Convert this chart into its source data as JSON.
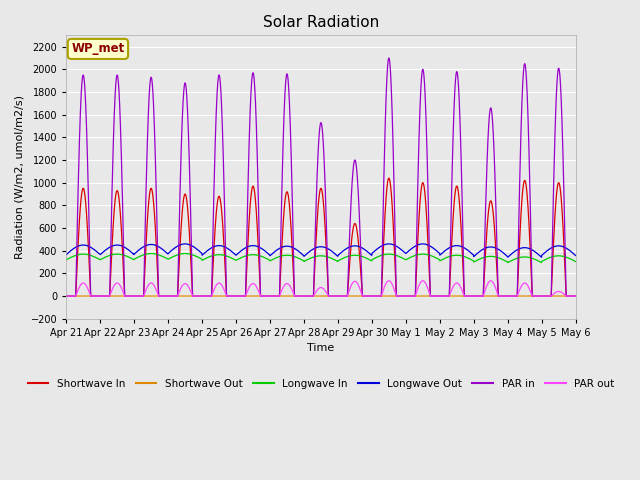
{
  "title": "Solar Radiation",
  "ylabel": "Radiation (W/m2, umol/m2/s)",
  "xlabel": "Time",
  "ylim": [
    -200,
    2300
  ],
  "yticks": [
    -200,
    0,
    200,
    400,
    600,
    800,
    1000,
    1200,
    1400,
    1600,
    1800,
    2000,
    2200
  ],
  "date_labels": [
    "Apr 21",
    "Apr 22",
    "Apr 23",
    "Apr 24",
    "Apr 25",
    "Apr 26",
    "Apr 27",
    "Apr 28",
    "Apr 29",
    "Apr 30",
    "May 1",
    "May 2",
    "May 3",
    "May 4",
    "May 5",
    "May 6"
  ],
  "n_days": 15,
  "fig_bg": "#e8e8e8",
  "plot_bg": "#e8e8e8",
  "legend_label": "WP_met",
  "sw_in_color": "#dd0000",
  "sw_out_color": "#dd8800",
  "lw_in_color": "#00cc00",
  "lw_out_color": "#0000dd",
  "par_in_color": "#9900cc",
  "par_out_color": "#ff44ff",
  "sw_in_peaks": [
    950,
    930,
    950,
    900,
    880,
    970,
    920,
    950,
    640,
    1040,
    1000,
    970,
    840,
    1020,
    1000
  ],
  "par_in_peaks": [
    1950,
    1950,
    1930,
    1880,
    1950,
    1970,
    1960,
    1530,
    1200,
    2100,
    2000,
    1980,
    1660,
    2050,
    2010
  ],
  "par_out_peaks": [
    115,
    115,
    115,
    110,
    115,
    110,
    110,
    75,
    130,
    135,
    135,
    115,
    135,
    115,
    40
  ],
  "lw_in_base": 320,
  "lw_in_amp": 50,
  "lw_out_base": 365,
  "lw_out_amp": 85,
  "lw_base_trend": [
    320,
    320,
    325,
    325,
    315,
    315,
    310,
    305,
    310,
    320,
    320,
    310,
    300,
    295,
    305
  ],
  "lw_out_trend": [
    365,
    365,
    370,
    375,
    360,
    360,
    355,
    350,
    358,
    375,
    375,
    360,
    348,
    342,
    358
  ]
}
